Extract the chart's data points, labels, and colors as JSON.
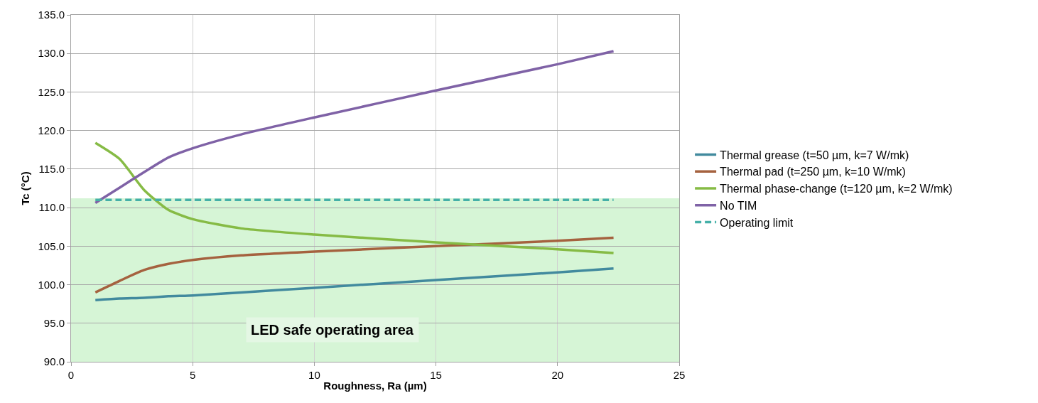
{
  "chart_data": {
    "type": "line",
    "xlabel": "Roughness, Ra (µm)",
    "ylabel": "Tc (°C)",
    "x": [
      1,
      2,
      3,
      4,
      5,
      7,
      10,
      15,
      20,
      22.3
    ],
    "xlim": [
      0,
      25
    ],
    "xticks": [
      0,
      5,
      10,
      15,
      20,
      25
    ],
    "ylim": [
      90,
      135
    ],
    "yticks": [
      {
        "value": 90,
        "label": "90.0"
      },
      {
        "value": 95,
        "label": "95.0"
      },
      {
        "value": 100,
        "label": "100.0"
      },
      {
        "value": 105,
        "label": "105.0"
      },
      {
        "value": 110,
        "label": "110.0"
      },
      {
        "value": 115,
        "label": "115.0"
      },
      {
        "value": 120,
        "label": "120.0"
      },
      {
        "value": 125,
        "label": "125.0"
      },
      {
        "value": 130,
        "label": "130.0"
      },
      {
        "value": 135,
        "label": "135.0"
      }
    ],
    "series": [
      {
        "name": "Thermal grease (t=50 µm, k=7 W/mk)",
        "color": "#428a9e",
        "values": [
          98.0,
          98.2,
          98.3,
          98.5,
          98.6,
          99.0,
          99.6,
          100.6,
          101.6,
          102.1
        ]
      },
      {
        "name": "Thermal pad (t=250 µm, k=10 W/mk)",
        "color": "#a5623f",
        "values": [
          99.0,
          100.5,
          101.9,
          102.7,
          103.2,
          103.8,
          104.3,
          105.0,
          105.7,
          106.1
        ]
      },
      {
        "name": "Thermal phase-change (t=120 µm, k=2 W/mk)",
        "color": "#86bb45",
        "values": [
          118.4,
          116.3,
          112.3,
          109.7,
          108.5,
          107.3,
          106.5,
          105.5,
          104.6,
          104.1
        ]
      },
      {
        "name": "No TIM",
        "color": "#7f62a6",
        "values": [
          110.6,
          112.6,
          114.6,
          116.5,
          117.7,
          119.5,
          121.7,
          125.2,
          128.6,
          130.3
        ]
      },
      {
        "name": "Operating limit",
        "color": "#45b0a8",
        "line_style": "dashed",
        "values": [
          111.0,
          111.0,
          111.0,
          111.0,
          111.0,
          111.0,
          111.0,
          111.0,
          111.0,
          111.0
        ]
      }
    ],
    "bands": [
      {
        "axis": "y",
        "from": 90,
        "to": 111.2,
        "color": "#d6f5d6"
      }
    ],
    "annotations": [
      "LED safe operating area"
    ],
    "grid": true,
    "legend": "right",
    "marker": "none",
    "line_style": "solid"
  }
}
